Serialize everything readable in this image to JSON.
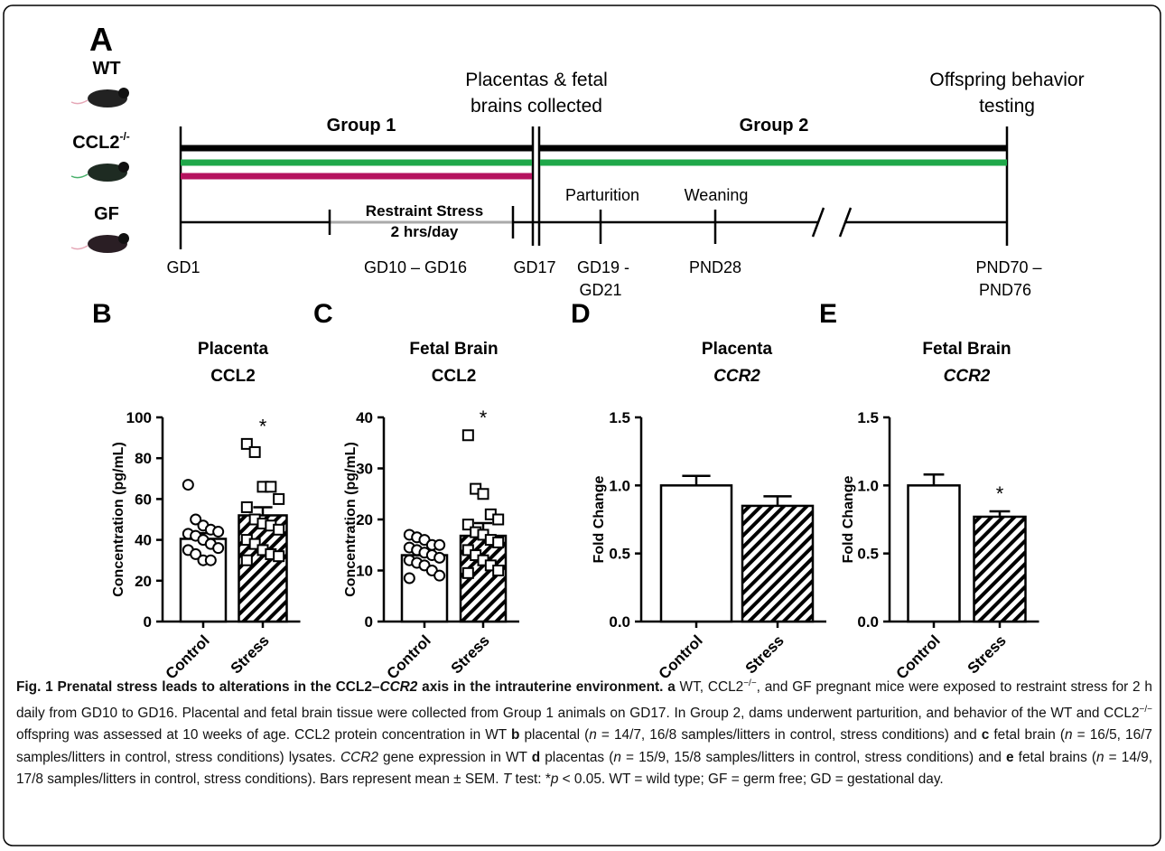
{
  "panel_a": {
    "label": "A",
    "strains": [
      {
        "name": "WT",
        "color": "#000000"
      },
      {
        "name": "CCL2",
        "sup": "-/-",
        "color": "#1fa84a"
      },
      {
        "name": "GF",
        "color": "#b5135f"
      }
    ],
    "collected": [
      "Placentas & fetal",
      "brains collected"
    ],
    "testing": [
      "Offspring behavior",
      "testing"
    ],
    "groups": [
      "Group 1",
      "Group 2"
    ],
    "stress": [
      "Restraint Stress",
      "2 hrs/day"
    ],
    "events": [
      "Parturition",
      "Weaning"
    ],
    "timepoints": [
      [
        "GD1"
      ],
      [
        "GD10 – GD16"
      ],
      [
        "GD17"
      ],
      [
        "GD19 -",
        "GD21"
      ],
      [
        "PND28"
      ],
      [
        "PND70 –",
        "PND76"
      ]
    ]
  },
  "chart_data": [
    {
      "type": "bar",
      "panel": "B",
      "title": [
        "Placenta",
        "CCL2"
      ],
      "gene_italic": false,
      "y_label": "Concentration (pg/mL)",
      "categories": [
        "Control",
        "Stress"
      ],
      "values": [
        40.5,
        52
      ],
      "errors": [
        2.8,
        4
      ],
      "points": [
        [
          67,
          50,
          47,
          45,
          44,
          43,
          42,
          40,
          38,
          36,
          35,
          33,
          30,
          30
        ],
        [
          87,
          83,
          66,
          66,
          60,
          56,
          50,
          48,
          47,
          45,
          40,
          38,
          35,
          33,
          32,
          30
        ]
      ],
      "annotation": "*",
      "ylim": [
        0,
        100
      ],
      "yticks": [
        0,
        20,
        40,
        60,
        80,
        100
      ]
    },
    {
      "type": "bar",
      "panel": "C",
      "title": [
        "Fetal Brain",
        "CCL2"
      ],
      "gene_italic": false,
      "y_label": "Concentration (pg/mL)",
      "categories": [
        "Control",
        "Stress"
      ],
      "values": [
        13,
        16.8
      ],
      "errors": [
        1,
        2.5
      ],
      "points": [
        [
          17,
          16.5,
          16,
          15,
          15,
          14.5,
          14,
          13.5,
          13,
          12.5,
          12,
          11.5,
          11,
          10,
          9,
          8.5
        ],
        [
          36.5,
          26,
          25,
          21,
          20,
          19,
          17.5,
          17,
          16,
          15.5,
          14,
          13,
          12,
          11,
          10,
          9.5
        ]
      ],
      "annotation": "*",
      "ylim": [
        0,
        40
      ],
      "yticks": [
        0,
        10,
        20,
        30,
        40
      ]
    },
    {
      "type": "bar",
      "panel": "D",
      "title": [
        "Placenta",
        "CCR2"
      ],
      "gene_italic": true,
      "y_label": "Fold Change",
      "categories": [
        "Control",
        "Stress"
      ],
      "values": [
        1.0,
        0.85
      ],
      "errors": [
        0.07,
        0.07
      ],
      "ylim": [
        0,
        1.5
      ],
      "yticks": [
        {
          "value": 0,
          "label": "0.0"
        },
        {
          "value": 0.5,
          "label": "0.5"
        },
        {
          "value": 1,
          "label": "1.0"
        },
        {
          "value": 1.5,
          "label": "1.5"
        }
      ]
    },
    {
      "type": "bar",
      "panel": "E",
      "title": [
        "Fetal Brain",
        "CCR2"
      ],
      "gene_italic": true,
      "y_label": "Fold Change",
      "categories": [
        "Control",
        "Stress"
      ],
      "values": [
        1.0,
        0.77
      ],
      "errors": [
        0.08,
        0.04
      ],
      "annotation": "*",
      "ylim": [
        0,
        1.5
      ],
      "yticks": [
        {
          "value": 0,
          "label": "0.0"
        },
        {
          "value": 0.5,
          "label": "0.5"
        },
        {
          "value": 1,
          "label": "1.0"
        },
        {
          "value": 1.5,
          "label": "1.5"
        }
      ]
    }
  ],
  "caption": [
    "Fig. 1 Prenatal stress leads to alterations in the CCL2–",
    "CCR2",
    " axis in the intrauterine environment. ",
    "a",
    " WT, CCL2",
    "−/−",
    ", and GF pregnant mice were exposed to restraint stress for 2 h daily from GD10 to GD16. Placental and fetal brain tissue were collected from Group 1 animals on GD17. In Group 2, dams underwent parturition, and behavior of the WT and CCL2",
    "−/−",
    " offspring was assessed at 10 weeks of age. CCL2 protein concentration in WT ",
    "b",
    " placental (",
    "n",
    " = 14/7, 16/8 samples/litters in control, stress conditions) and ",
    "c",
    " fetal brain (",
    "n",
    " = 16/5, 16/7 samples/litters in control, stress conditions) lysates. ",
    "CCR2",
    " gene expression in WT ",
    "d",
    " placentas (",
    "n",
    " = 15/9, 15/8 samples/litters in control, stress conditions) and ",
    "e",
    " fetal brains (",
    "n",
    " = 14/9, 17/8 samples/litters in control, stress conditions). Bars represent mean ± SEM. ",
    "T",
    " test: *",
    "p",
    " < 0.05. WT = wild type; GF = germ free; GD = gestational day."
  ]
}
